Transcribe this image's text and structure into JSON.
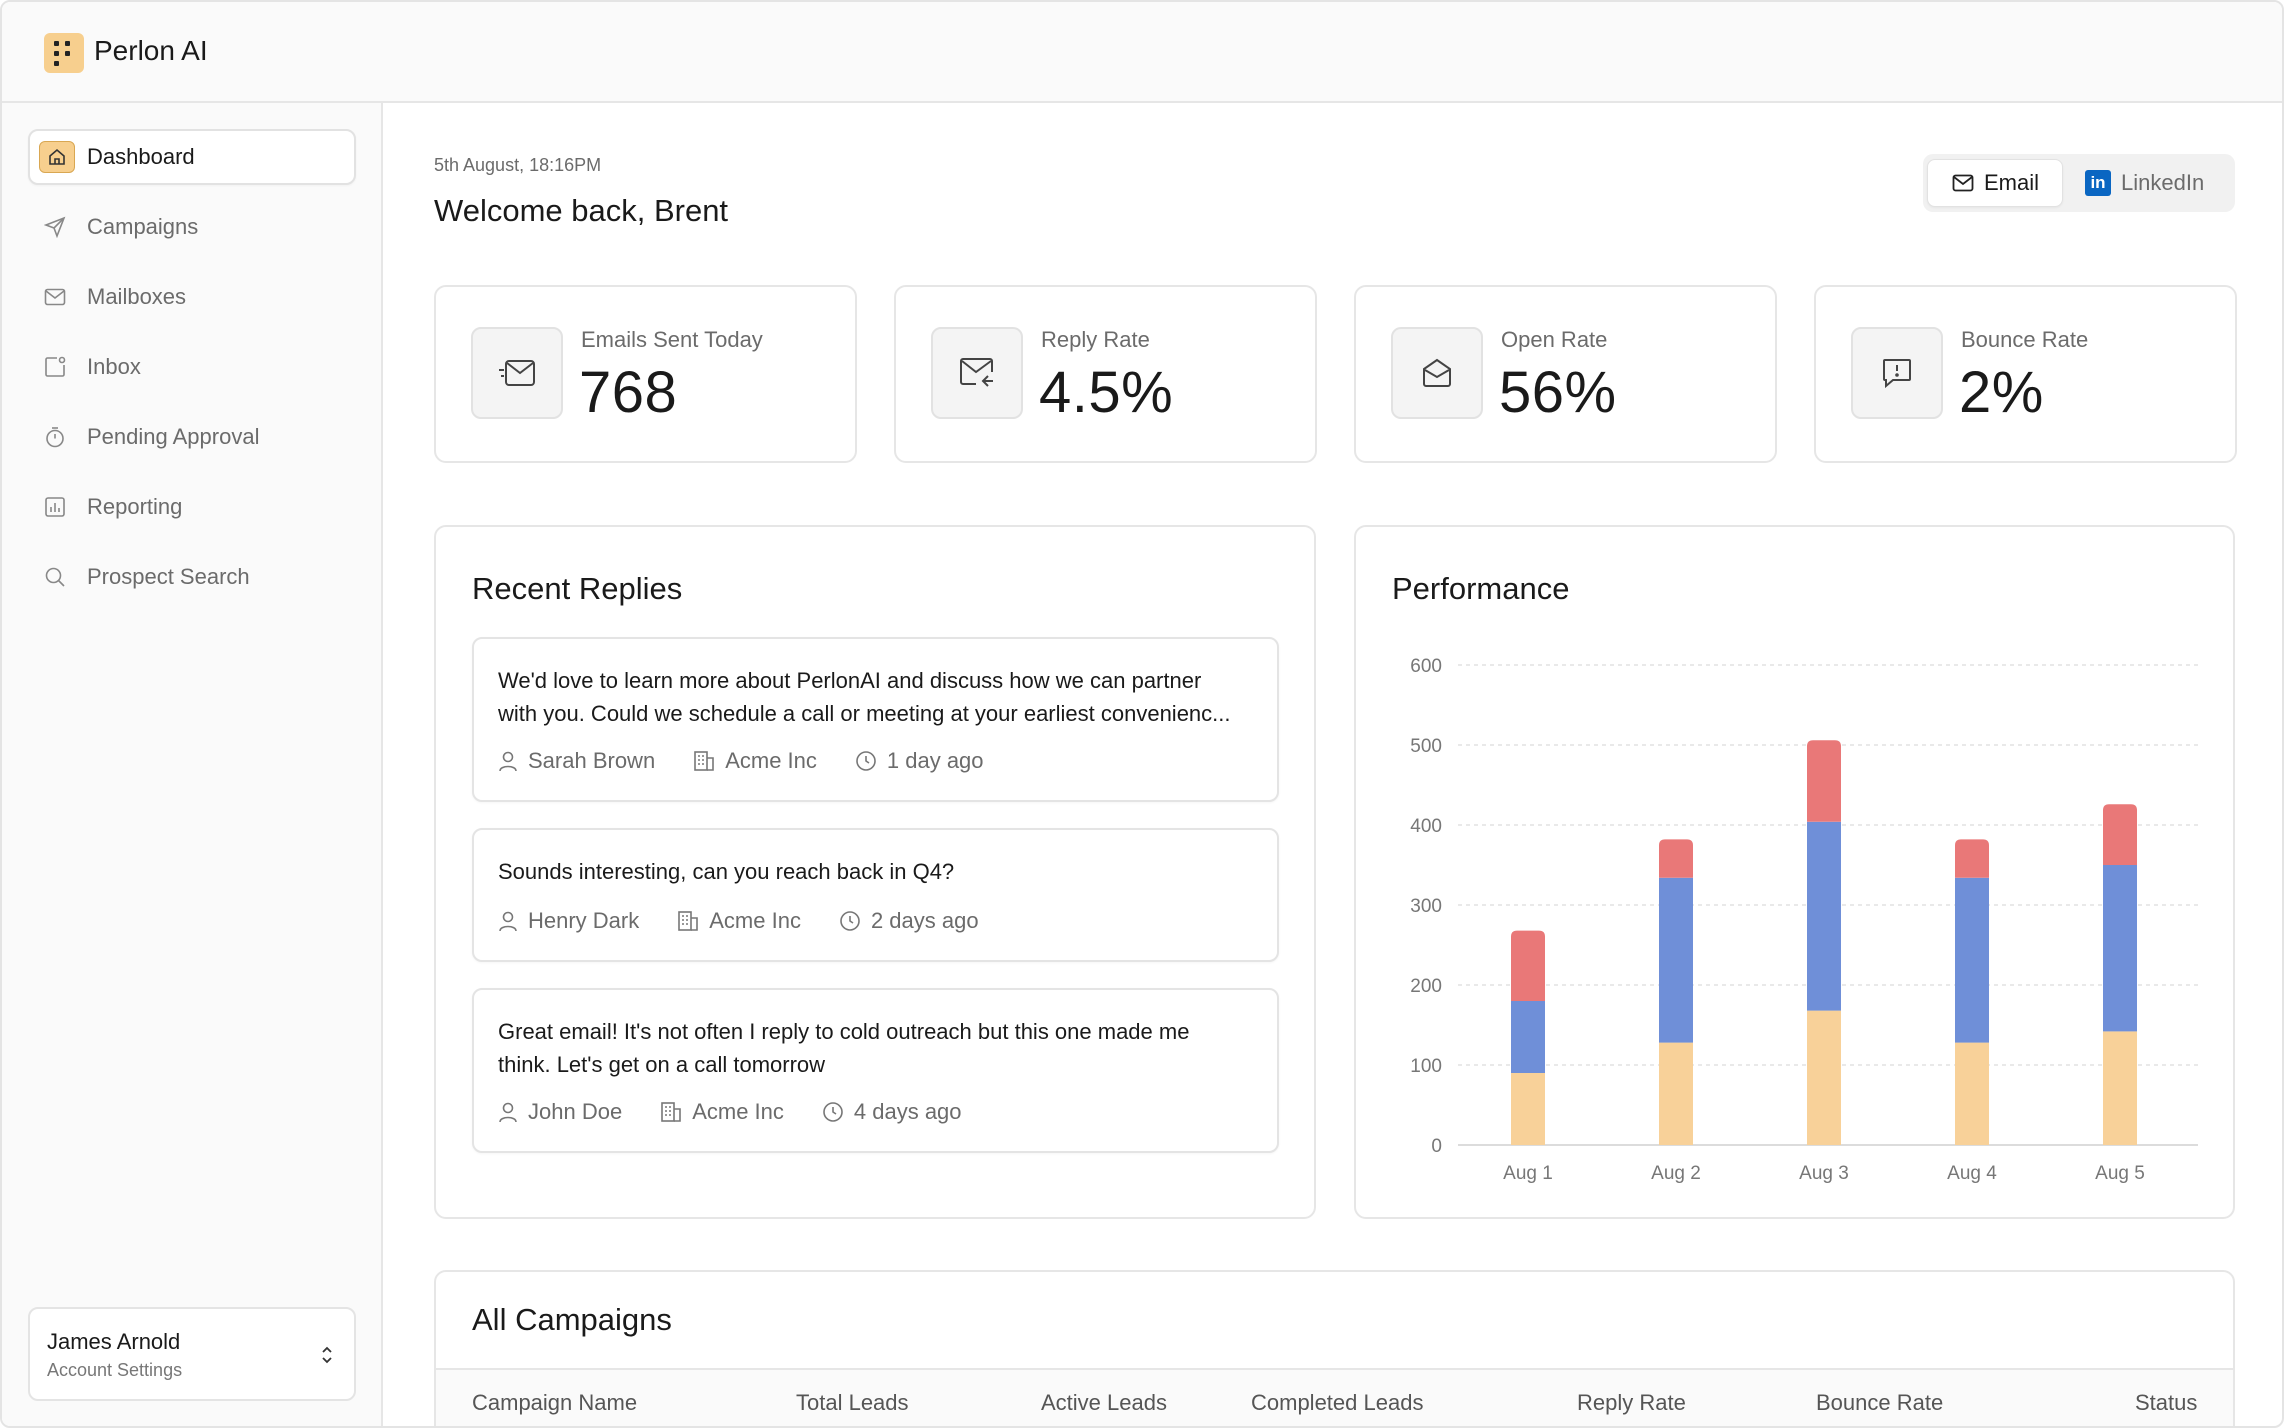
{
  "app": {
    "title": "Perlon AI"
  },
  "sidebar": {
    "items": [
      {
        "label": "Dashboard",
        "icon": "home-icon",
        "active": true
      },
      {
        "label": "Campaigns",
        "icon": "send-icon"
      },
      {
        "label": "Mailboxes",
        "icon": "mail-icon"
      },
      {
        "label": "Inbox",
        "icon": "inbox-icon"
      },
      {
        "label": "Pending Approval",
        "icon": "timer-icon"
      },
      {
        "label": "Reporting",
        "icon": "chart-icon"
      },
      {
        "label": "Prospect Search",
        "icon": "search-icon"
      }
    ],
    "account": {
      "name": "James Arnold",
      "subtitle": "Account Settings",
      "icon": "chevron-up-down-icon"
    }
  },
  "header": {
    "datetime": "5th August, 18:16PM",
    "welcome": "Welcome back, Brent",
    "channel_toggle": {
      "email": "Email",
      "linkedin": "LinkedIn",
      "selected": "Email"
    }
  },
  "stats": [
    {
      "label": "Emails Sent Today",
      "value": "768",
      "icon": "mail-send-icon"
    },
    {
      "label": "Reply Rate",
      "value": "4.5%",
      "icon": "mail-reply-icon"
    },
    {
      "label": "Open Rate",
      "value": "56%",
      "icon": "mail-open-icon"
    },
    {
      "label": "Bounce Rate",
      "value": "2%",
      "icon": "message-alert-icon"
    }
  ],
  "recent_replies": {
    "title": "Recent Replies",
    "items": [
      {
        "text_line1": "We'd love to learn more about PerlonAI and discuss how we can partner",
        "text_line2": "with you. Could we schedule a call or meeting at your earliest convenienc...",
        "name": "Sarah Brown",
        "company": "Acme Inc",
        "time": "1 day ago"
      },
      {
        "text_line1": "Sounds interesting, can you reach back in Q4?",
        "text_line2": "",
        "name": "Henry Dark",
        "company": "Acme Inc",
        "time": "2 days ago"
      },
      {
        "text_line1": "Great email! It's not often I reply to cold outreach but this one made me",
        "text_line2": "think. Let's get on a call tomorrow",
        "name": "John Doe",
        "company": "Acme Inc",
        "time": "4 days ago"
      }
    ]
  },
  "performance": {
    "title": "Performance"
  },
  "chart_data": {
    "type": "bar",
    "stacked": true,
    "categories": [
      "Aug 1",
      "Aug 2",
      "Aug 3",
      "Aug 4",
      "Aug 5"
    ],
    "series": [
      {
        "values": [
          90,
          128,
          168,
          128,
          142
        ],
        "color": "#f8d199"
      },
      {
        "values": [
          90,
          206,
          236,
          206,
          208
        ],
        "color": "#6f8fd8"
      },
      {
        "values": [
          88,
          48,
          102,
          48,
          76
        ],
        "color": "#e97878"
      }
    ],
    "ylim": [
      0,
      600
    ],
    "yticks": [
      0,
      100,
      200,
      300,
      400,
      500,
      600
    ],
    "grid": true,
    "title": "",
    "xlabel": "",
    "ylabel": ""
  },
  "campaigns": {
    "title": "All Campaigns",
    "columns": [
      "Campaign Name",
      "Total Leads",
      "Active Leads",
      "Completed Leads",
      "Reply Rate",
      "Bounce Rate",
      "Status"
    ]
  }
}
